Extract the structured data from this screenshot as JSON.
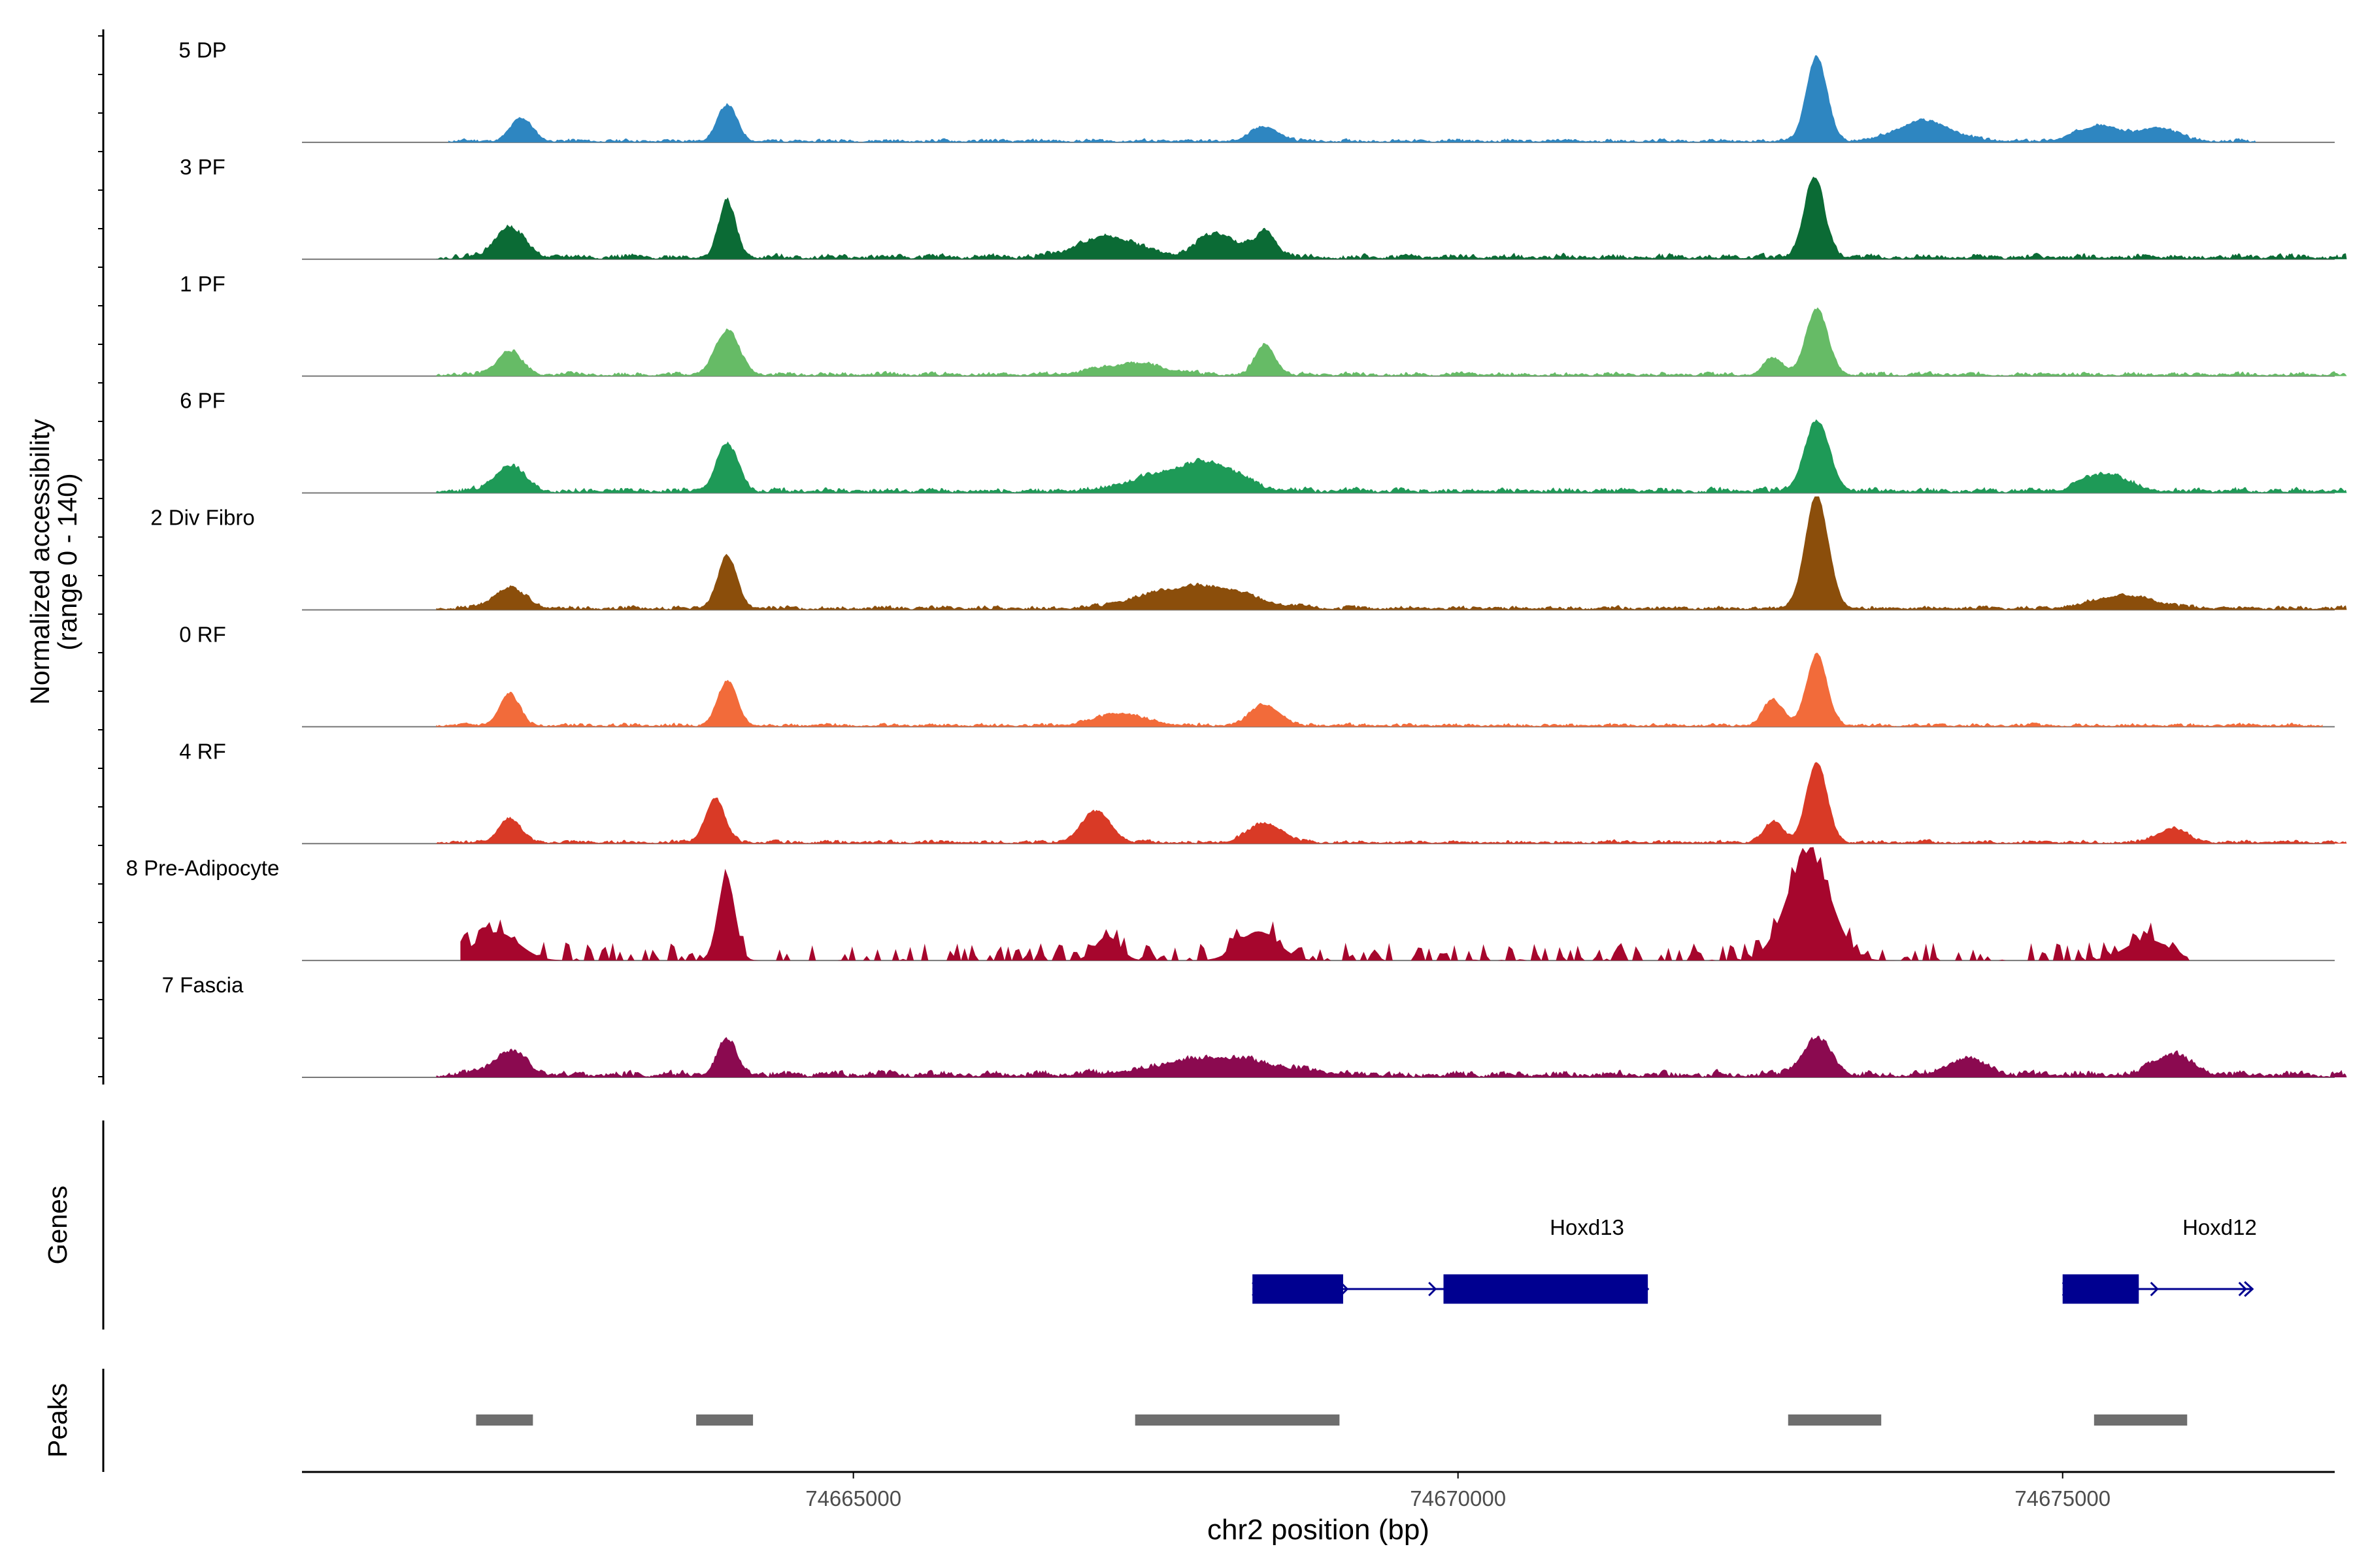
{
  "chart_data": {
    "type": "area",
    "title": "",
    "coverage": {
      "ylabel_line1": "Normalized accessibility",
      "ylabel_line2": "(range 0 - 140)",
      "ylim": [
        0,
        140
      ],
      "tracks": [
        {
          "name": "5 DP",
          "color": "#2E86C1",
          "extent": [
            74661650,
            74676600
          ],
          "peaks": [
            [
              74662250,
              28,
              90
            ],
            [
              74663950,
              45,
              80
            ],
            [
              74668400,
              18,
              110
            ],
            [
              74672960,
              105,
              85
            ],
            [
              74673850,
              25,
              220
            ],
            [
              74675300,
              20,
              180
            ],
            [
              74675800,
              16,
              150
            ]
          ],
          "noise": 6,
          "seed": 11
        },
        {
          "name": "3 PF",
          "color": "#0B6B35",
          "extent": [
            74661550,
            74677350
          ],
          "peaks": [
            [
              74662150,
              38,
              120
            ],
            [
              74663950,
              70,
              70
            ],
            [
              74667100,
              26,
              240
            ],
            [
              74668000,
              30,
              160
            ],
            [
              74668400,
              32,
              90
            ],
            [
              74672940,
              100,
              85
            ]
          ],
          "noise": 9,
          "seed": 22
        },
        {
          "name": "1 PF",
          "color": "#66BB66",
          "extent": [
            74661550,
            74677350
          ],
          "peaks": [
            [
              74662150,
              30,
              100
            ],
            [
              74663950,
              55,
              100
            ],
            [
              74667300,
              14,
              250
            ],
            [
              74668400,
              38,
              80
            ],
            [
              74672600,
              20,
              80
            ],
            [
              74672960,
              82,
              90
            ]
          ],
          "noise": 7,
          "seed": 33
        },
        {
          "name": "6 PF",
          "color": "#1E9A57",
          "extent": [
            74661550,
            74677350
          ],
          "peaks": [
            [
              74662150,
              32,
              120
            ],
            [
              74663950,
              58,
              90
            ],
            [
              74667600,
              22,
              300
            ],
            [
              74668000,
              25,
              220
            ],
            [
              74672960,
              88,
              100
            ],
            [
              74675350,
              22,
              180
            ]
          ],
          "noise": 9,
          "seed": 44
        },
        {
          "name": "2 Div Fibro",
          "color": "#8B4E0B",
          "extent": [
            74661550,
            74677350
          ],
          "peaks": [
            [
              74662150,
              26,
              130
            ],
            [
              74663950,
              65,
              80
            ],
            [
              74667500,
              15,
              260
            ],
            [
              74668000,
              24,
              300
            ],
            [
              74672960,
              140,
              95
            ],
            [
              74675500,
              16,
              250
            ]
          ],
          "noise": 7,
          "seed": 55
        },
        {
          "name": "0 RF",
          "color": "#F26B3A",
          "extent": [
            74661550,
            74677150
          ],
          "peaks": [
            [
              74662150,
              40,
              80
            ],
            [
              74663950,
              55,
              80
            ],
            [
              74667200,
              15,
              200
            ],
            [
              74668400,
              26,
              120
            ],
            [
              74672600,
              32,
              80
            ],
            [
              74672960,
              88,
              85
            ]
          ],
          "noise": 6,
          "seed": 66
        },
        {
          "name": "4 RF",
          "color": "#D93A26",
          "extent": [
            74661550,
            74677350
          ],
          "peaks": [
            [
              74662150,
              30,
              90
            ],
            [
              74663850,
              55,
              80
            ],
            [
              74667000,
              38,
              120
            ],
            [
              74668400,
              24,
              140
            ],
            [
              74672600,
              25,
              80
            ],
            [
              74672960,
              100,
              85
            ],
            [
              74675900,
              18,
              120
            ]
          ],
          "noise": 6,
          "seed": 77
        },
        {
          "name": "8 Pre-Adipocyte",
          "color": "#A6062D",
          "extent": [
            74661750,
            74676050
          ],
          "peaks": [
            [
              74662050,
              35,
              180
            ],
            [
              74663950,
              105,
              70
            ],
            [
              74667100,
              30,
              100
            ],
            [
              74668350,
              36,
              160
            ],
            [
              74672900,
              130,
              180
            ],
            [
              74675700,
              26,
              180
            ]
          ],
          "noise": 10,
          "seed": 88,
          "spiky": true
        },
        {
          "name": "7 Fascia",
          "color": "#8B0A50",
          "extent": [
            74661550,
            74677350
          ],
          "peaks": [
            [
              74662150,
              30,
              130
            ],
            [
              74663950,
              45,
              80
            ],
            [
              74668000,
              22,
              450
            ],
            [
              74672960,
              45,
              120
            ],
            [
              74674200,
              20,
              160
            ],
            [
              74675900,
              26,
              160
            ]
          ],
          "noise": 11,
          "seed": 99
        }
      ]
    },
    "genes": {
      "ylabel": "Genes",
      "color": "#000090",
      "items": [
        {
          "name": "Hoxd13",
          "start": 74668300,
          "end": 74671570,
          "exons": [
            [
              74668300,
              74669050
            ],
            [
              74669880,
              74671570
            ]
          ]
        },
        {
          "name": "Hoxd12",
          "start": 74675000,
          "end": 74676570,
          "exons": [
            [
              74675000,
              74675630
            ]
          ]
        }
      ]
    },
    "peaks_track": {
      "ylabel": "Peaks",
      "color": "#6E6E6E",
      "regions": [
        [
          74661880,
          74662350
        ],
        [
          74663700,
          74664170
        ],
        [
          74667330,
          74669020
        ],
        [
          74672730,
          74673500
        ],
        [
          74675260,
          74676030
        ]
      ]
    },
    "xaxis": {
      "label": "chr2 position (bp)",
      "range": [
        74660440,
        74677250
      ],
      "ticks": [
        74665000,
        74670000,
        74675000
      ],
      "tick_labels": [
        "74665000",
        "74670000",
        "74675000"
      ]
    }
  }
}
